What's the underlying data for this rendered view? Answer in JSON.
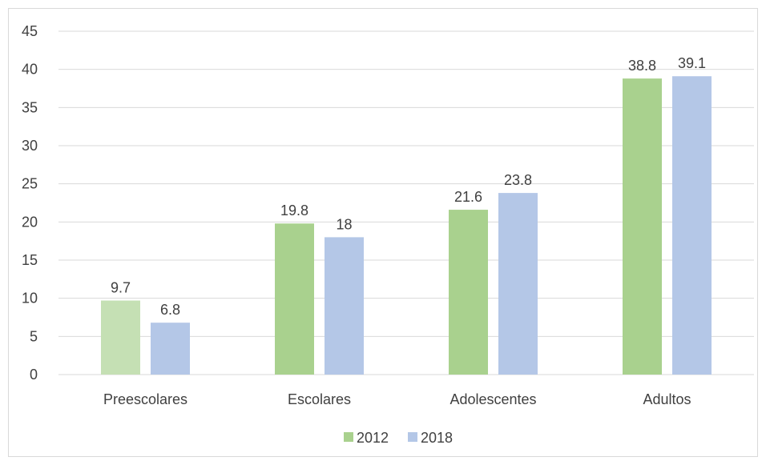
{
  "chart_data": {
    "type": "bar",
    "categories": [
      "Preescolares",
      "Escolares",
      "Adolescentes",
      "Adultos"
    ],
    "series": [
      {
        "name": "2012",
        "values": [
          9.7,
          19.8,
          21.6,
          38.8
        ],
        "color": "#a9d18e",
        "first_point_color": "#c5e0b4"
      },
      {
        "name": "2018",
        "values": [
          6.8,
          18,
          23.8,
          39.1
        ],
        "color": "#b4c7e7"
      }
    ],
    "yticks": [
      "0",
      "5",
      "10",
      "15",
      "20",
      "25",
      "30",
      "35",
      "40",
      "45"
    ],
    "ylim": [
      0,
      45
    ],
    "grid": true,
    "legend_position": "bottom",
    "data_labels": true,
    "gridline_color": "#d9d9d9"
  }
}
